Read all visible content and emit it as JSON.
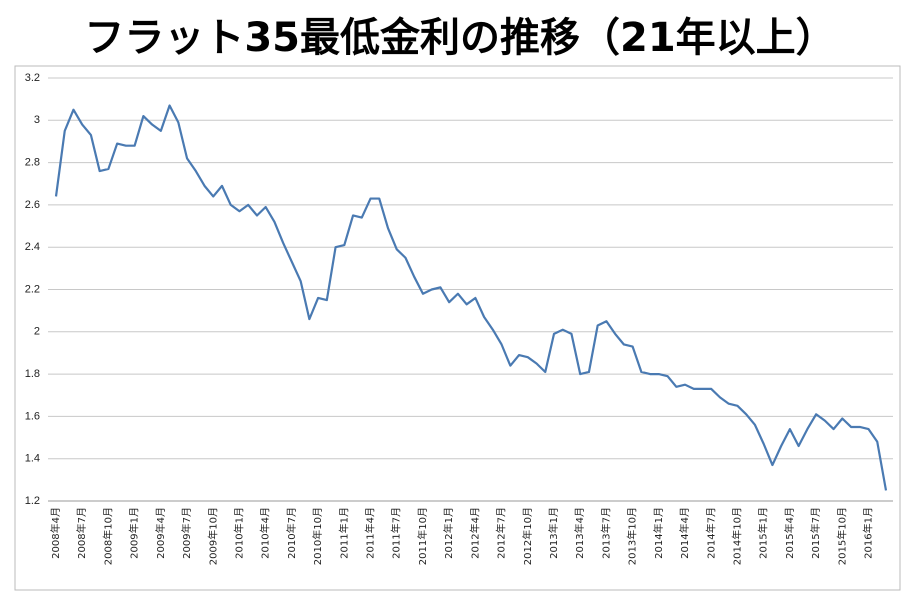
{
  "chart_data": {
    "type": "line",
    "title": "フラット35最低金利の推移（21年以上）",
    "categories": [
      "2008年4月",
      null,
      null,
      "2008年7月",
      null,
      null,
      "2008年10月",
      null,
      null,
      "2009年1月",
      null,
      null,
      "2009年4月",
      null,
      null,
      "2009年7月",
      null,
      null,
      "2009年10月",
      null,
      null,
      "2010年1月",
      null,
      null,
      "2010年4月",
      null,
      null,
      "2010年7月",
      null,
      null,
      "2010年10月",
      null,
      null,
      "2011年1月",
      null,
      null,
      "2011年4月",
      null,
      null,
      "2011年7月",
      null,
      null,
      "2011年10月",
      null,
      null,
      "2012年1月",
      null,
      null,
      "2012年4月",
      null,
      null,
      "2012年7月",
      null,
      null,
      "2012年10月",
      null,
      null,
      "2013年1月",
      null,
      null,
      "2013年4月",
      null,
      null,
      "2013年7月",
      null,
      null,
      "2013年10月",
      null,
      null,
      "2014年1月",
      null,
      null,
      "2014年4月",
      null,
      null,
      "2014年7月",
      null,
      null,
      "2014年10月",
      null,
      null,
      "2015年1月",
      null,
      null,
      "2015年4月",
      null,
      null,
      "2015年7月",
      null,
      null,
      "2015年10月",
      null,
      null,
      "2016年1月",
      null,
      null
    ],
    "values": [
      2.64,
      2.95,
      3.05,
      2.98,
      2.93,
      2.76,
      2.77,
      2.89,
      2.88,
      2.88,
      3.02,
      2.98,
      2.95,
      3.07,
      2.99,
      2.82,
      2.76,
      2.69,
      2.64,
      2.69,
      2.6,
      2.57,
      2.6,
      2.55,
      2.59,
      2.52,
      2.42,
      2.33,
      2.24,
      2.06,
      2.16,
      2.15,
      2.4,
      2.41,
      2.55,
      2.54,
      2.63,
      2.63,
      2.49,
      2.39,
      2.35,
      2.26,
      2.18,
      2.2,
      2.21,
      2.14,
      2.18,
      2.13,
      2.16,
      2.07,
      2.01,
      1.94,
      1.84,
      1.89,
      1.88,
      1.85,
      1.81,
      1.99,
      2.01,
      1.99,
      1.8,
      1.81,
      2.03,
      2.05,
      1.99,
      1.94,
      1.93,
      1.81,
      1.8,
      1.8,
      1.79,
      1.74,
      1.75,
      1.73,
      1.73,
      1.73,
      1.69,
      1.66,
      1.65,
      1.61,
      1.56,
      1.47,
      1.37,
      1.46,
      1.54,
      1.46,
      1.54,
      1.61,
      1.58,
      1.54,
      1.59,
      1.55,
      1.55,
      1.54,
      1.48,
      1.25
    ],
    "color": "#4a7ab2",
    "ylim": [
      1.2,
      3.2
    ],
    "yticks": [
      1.2,
      1.4,
      1.6,
      1.8,
      2,
      2.2,
      2.4,
      2.6,
      2.8,
      3,
      3.2
    ],
    "grid": true
  }
}
